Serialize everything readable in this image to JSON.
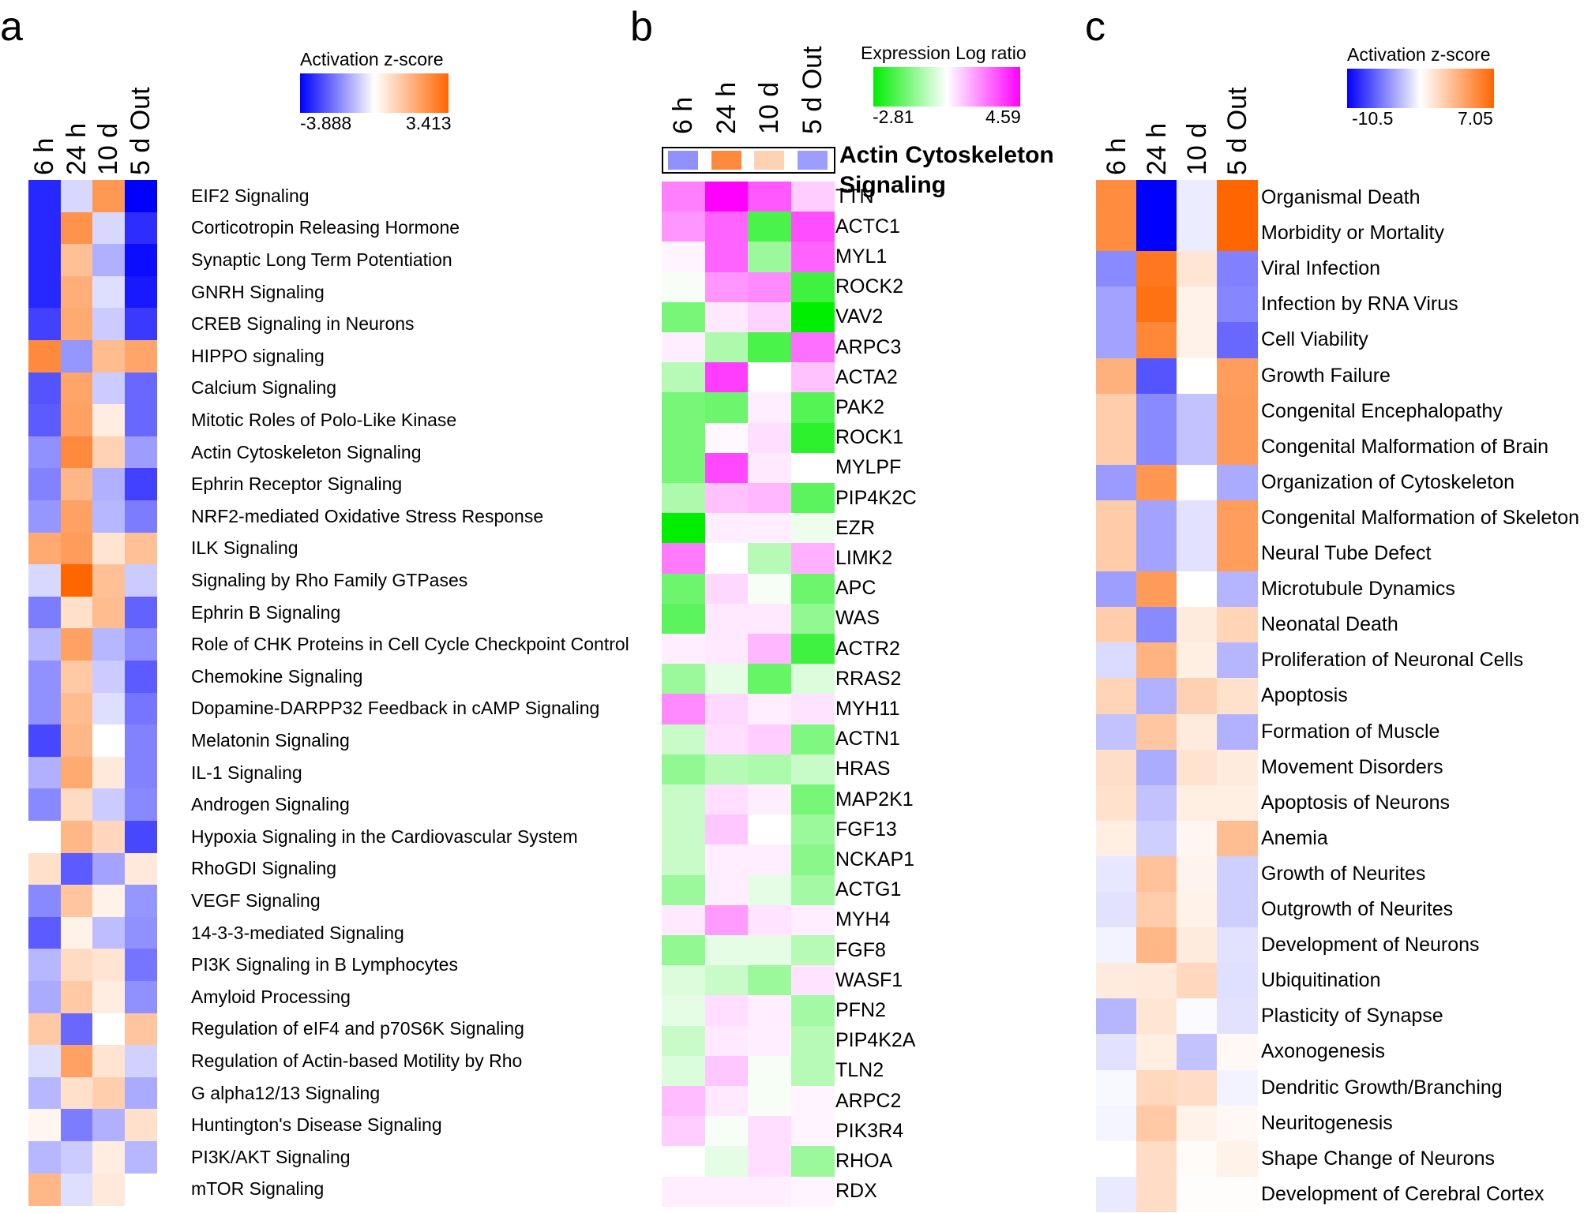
{
  "chart_data": [
    {
      "type": "heatmap",
      "panel": "a",
      "title": "",
      "legend": {
        "title": "Activation z-score",
        "min": -3.888,
        "max": 3.413,
        "min_label": "-3.888",
        "max_label": "3.413",
        "colors": {
          "low": "#0000ff",
          "mid": "#ffffff",
          "high": "#ff6600"
        }
      },
      "columns": [
        "6 h",
        "24 h",
        "10 d",
        "5 d Out"
      ],
      "rows": [
        {
          "label": "EIF2 Signaling",
          "values": [
            -3.3,
            -0.6,
            2.3,
            -3.888
          ]
        },
        {
          "label": "Corticotropin Releasing Hormone",
          "values": [
            -3.3,
            2.4,
            -0.6,
            -3.2
          ]
        },
        {
          "label": "Synaptic Long Term Potentiation",
          "values": [
            -3.3,
            1.4,
            -1.2,
            -3.7
          ]
        },
        {
          "label": "GNRH Signaling",
          "values": [
            -3.3,
            1.8,
            -0.5,
            -3.5
          ]
        },
        {
          "label": "CREB Signaling in Neurons",
          "values": [
            -2.9,
            1.9,
            -0.8,
            -3.0
          ]
        },
        {
          "label": "HIPPO signaling",
          "values": [
            2.6,
            -1.6,
            1.5,
            2.0
          ]
        },
        {
          "label": "Calcium Signaling",
          "values": [
            -2.6,
            2.0,
            -0.8,
            -2.3
          ]
        },
        {
          "label": "Mitotic Roles of Polo-Like Kinase",
          "values": [
            -2.5,
            2.1,
            0.4,
            -2.3
          ]
        },
        {
          "label": "Actin Cytoskeleton Signaling",
          "values": [
            -1.7,
            2.6,
            1.0,
            -1.5
          ]
        },
        {
          "label": "Ephrin Receptor Signaling",
          "values": [
            -1.9,
            1.6,
            -1.2,
            -2.9
          ]
        },
        {
          "label": "NRF2-mediated Oxidative Stress Response",
          "values": [
            -1.6,
            2.1,
            -1.1,
            -2.0
          ]
        },
        {
          "label": "ILK Signaling",
          "values": [
            1.9,
            2.2,
            0.6,
            1.4
          ]
        },
        {
          "label": "Signaling by Rho Family GTPases",
          "values": [
            -0.6,
            3.413,
            1.4,
            -0.8
          ]
        },
        {
          "label": "Ephrin B Signaling",
          "values": [
            -2.0,
            0.7,
            1.5,
            -2.4
          ]
        },
        {
          "label": "Role of CHK Proteins in Cell Cycle Checkpoint Control",
          "values": [
            -1.1,
            2.1,
            -1.1,
            -1.7
          ]
        },
        {
          "label": "Chemokine Signaling",
          "values": [
            -1.7,
            1.2,
            -0.8,
            -2.5
          ]
        },
        {
          "label": "Dopamine-DARPP32 Feedback in cAMP Signaling",
          "values": [
            -1.7,
            1.5,
            -0.5,
            -2.1
          ]
        },
        {
          "label": "Melatonin Signaling",
          "values": [
            -2.8,
            1.6,
            0.0,
            -1.9
          ]
        },
        {
          "label": "IL-1 Signaling",
          "values": [
            -1.2,
            1.9,
            0.5,
            -1.9
          ]
        },
        {
          "label": "Androgen Signaling",
          "values": [
            -1.8,
            0.8,
            -0.8,
            -1.8
          ]
        },
        {
          "label": "Hypoxia Signaling in the Cardiovascular System",
          "values": [
            0.0,
            1.6,
            0.9,
            -2.8
          ]
        },
        {
          "label": "RhoGDI Signaling",
          "values": [
            0.7,
            -2.5,
            -1.4,
            0.5
          ]
        },
        {
          "label": "VEGF Signaling",
          "values": [
            -1.8,
            1.3,
            0.3,
            -1.6
          ]
        },
        {
          "label": "14-3-3-mediated Signaling",
          "values": [
            -2.5,
            0.3,
            -1.0,
            -1.7
          ]
        },
        {
          "label": "PI3K Signaling in B Lymphocytes",
          "values": [
            -1.1,
            0.8,
            0.6,
            -2.1
          ]
        },
        {
          "label": "Amyloid Processing",
          "values": [
            -1.3,
            1.2,
            0.4,
            -1.7
          ]
        },
        {
          "label": "Regulation of eIF4 and p70S6K Signaling",
          "values": [
            1.2,
            -2.3,
            0.0,
            1.3
          ]
        },
        {
          "label": "Regulation of Actin-based Motility by Rho",
          "values": [
            -0.5,
            2.1,
            0.6,
            -0.7
          ]
        },
        {
          "label": "G alpha12/13 Signaling",
          "values": [
            -1.1,
            0.7,
            1.1,
            -1.3
          ]
        },
        {
          "label": "Huntington's Disease Signaling",
          "values": [
            0.2,
            -2.0,
            -1.2,
            0.7
          ]
        },
        {
          "label": "PI3K/AKT Signaling",
          "values": [
            -1.1,
            -0.8,
            0.4,
            -1.1
          ]
        },
        {
          "label": "mTOR Signaling",
          "values": [
            1.6,
            -0.5,
            0.5,
            0.0
          ]
        }
      ]
    },
    {
      "type": "heatmap",
      "panel": "b",
      "header": {
        "title_line1": "Actin Cytoskeleton",
        "title_line2": "Signaling",
        "z_scores": [
          -1.7,
          2.6,
          1.0,
          -1.5
        ]
      },
      "legend": {
        "title": "Expression Log ratio",
        "min": -2.81,
        "max": 4.59,
        "min_label": "-2.81",
        "max_label": "4.59",
        "colors": {
          "low": "#00ee00",
          "mid": "#ffffff",
          "high": "#ff00ff"
        }
      },
      "columns": [
        "6 h",
        "24 h",
        "10 d",
        "5 d Out"
      ],
      "rows": [
        {
          "label": "TTN",
          "values": [
            2.3,
            4.59,
            3.0,
            0.9
          ]
        },
        {
          "label": "ACTC1",
          "values": [
            1.9,
            2.8,
            -2.0,
            3.2
          ]
        },
        {
          "label": "MYL1",
          "values": [
            0.2,
            2.8,
            -1.1,
            2.8
          ]
        },
        {
          "label": "ROCK2",
          "values": [
            -0.1,
            1.9,
            2.1,
            -2.1
          ]
        },
        {
          "label": "VAV2",
          "values": [
            -1.5,
            0.4,
            0.8,
            -2.81
          ]
        },
        {
          "label": "ARPC3",
          "values": [
            0.3,
            -0.9,
            -2.0,
            2.6
          ]
        },
        {
          "label": "ACTA2",
          "values": [
            -0.8,
            3.5,
            0.0,
            1.1
          ]
        },
        {
          "label": "PAK2",
          "values": [
            -1.5,
            -1.6,
            0.3,
            -1.9
          ]
        },
        {
          "label": "ROCK1",
          "values": [
            -1.5,
            0.1,
            0.6,
            -2.3
          ]
        },
        {
          "label": "MYLPF",
          "values": [
            -1.5,
            3.3,
            0.4,
            0.0
          ]
        },
        {
          "label": "PIP4K2C",
          "values": [
            -0.9,
            1.1,
            1.3,
            -1.8
          ]
        },
        {
          "label": "EZR",
          "values": [
            -2.81,
            0.3,
            0.3,
            -0.2
          ]
        },
        {
          "label": "LIMK2",
          "values": [
            2.4,
            0.0,
            -0.8,
            1.4
          ]
        },
        {
          "label": "APC",
          "values": [
            -1.6,
            0.7,
            -0.1,
            -1.6
          ]
        },
        {
          "label": "WAS",
          "values": [
            -1.8,
            0.4,
            0.4,
            -1.2
          ]
        },
        {
          "label": "ACTR2",
          "values": [
            0.3,
            0.4,
            1.3,
            -2.1
          ]
        },
        {
          "label": "RRAS2",
          "values": [
            -1.1,
            -0.3,
            -1.7,
            -0.4
          ]
        },
        {
          "label": "MYH11",
          "values": [
            2.1,
            0.7,
            0.3,
            0.5
          ]
        },
        {
          "label": "ACTN1",
          "values": [
            -0.6,
            0.6,
            0.9,
            -1.4
          ]
        },
        {
          "label": "HRAS",
          "values": [
            -1.2,
            -0.8,
            -0.9,
            -0.6
          ]
        },
        {
          "label": "MAP2K1",
          "values": [
            -0.6,
            0.6,
            0.3,
            -1.5
          ]
        },
        {
          "label": "FGF13",
          "values": [
            -0.6,
            1.0,
            0.0,
            -1.1
          ]
        },
        {
          "label": "NCKAP1",
          "values": [
            -0.6,
            0.3,
            0.3,
            -1.3
          ]
        },
        {
          "label": "ACTG1",
          "values": [
            -1.1,
            0.3,
            -0.3,
            -1.0
          ]
        },
        {
          "label": "MYH4",
          "values": [
            0.4,
            1.8,
            0.5,
            0.3
          ]
        },
        {
          "label": "FGF8",
          "values": [
            -1.2,
            -0.3,
            -0.3,
            -0.8
          ]
        },
        {
          "label": "WASF1",
          "values": [
            -0.4,
            -0.6,
            -1.1,
            0.5
          ]
        },
        {
          "label": "PFN2",
          "values": [
            -0.3,
            0.6,
            0.3,
            -1.0
          ]
        },
        {
          "label": "PIP4K2A",
          "values": [
            -0.6,
            0.4,
            0.3,
            -0.8
          ]
        },
        {
          "label": "TLN2",
          "values": [
            -0.4,
            1.0,
            -0.1,
            -0.8
          ]
        },
        {
          "label": "ARPC2",
          "values": [
            1.2,
            0.4,
            -0.1,
            0.2
          ]
        },
        {
          "label": "PIK3R4",
          "values": [
            0.9,
            -0.1,
            0.6,
            0.2
          ]
        },
        {
          "label": "RHOA",
          "values": [
            0.0,
            -0.3,
            0.6,
            -1.1
          ]
        },
        {
          "label": "RDX",
          "values": [
            0.3,
            0.3,
            0.3,
            0.2
          ]
        }
      ]
    },
    {
      "type": "heatmap",
      "panel": "c",
      "legend": {
        "title": "Activation z-score",
        "min": -10.5,
        "max": 7.05,
        "min_label": "-10.5",
        "max_label": "7.05",
        "colors": {
          "low": "#0000ff",
          "mid": "#ffffff",
          "high": "#ff6600"
        }
      },
      "columns": [
        "6 h",
        "24 h",
        "10 d",
        "5 d Out"
      ],
      "rows": [
        {
          "label": "Organismal Death",
          "values": [
            5.3,
            -10.5,
            -0.8,
            7.05
          ]
        },
        {
          "label": "Morbidity or Mortality",
          "values": [
            5.3,
            -10.5,
            -0.8,
            7.05
          ]
        },
        {
          "label": "Viral Infection",
          "values": [
            -4.8,
            6.2,
            1.2,
            -5.2
          ]
        },
        {
          "label": "Infection by RNA Virus",
          "values": [
            -3.8,
            6.5,
            0.6,
            -5.0
          ]
        },
        {
          "label": "Cell Viability",
          "values": [
            -3.8,
            5.5,
            0.6,
            -6.2
          ]
        },
        {
          "label": "Growth Failure",
          "values": [
            3.6,
            -7.0,
            0.0,
            4.5
          ]
        },
        {
          "label": "Congenital Encephalopathy",
          "values": [
            2.3,
            -4.8,
            -2.5,
            4.6
          ]
        },
        {
          "label": "Congenital Malformation of Brain",
          "values": [
            2.3,
            -4.8,
            -2.5,
            4.6
          ]
        },
        {
          "label": "Organization of Cytoskeleton",
          "values": [
            -4.1,
            4.8,
            0.0,
            -3.5
          ]
        },
        {
          "label": "Congenital Malformation of Skeleton",
          "values": [
            2.4,
            -3.8,
            -1.2,
            4.5
          ]
        },
        {
          "label": "Neural Tube Defect",
          "values": [
            2.4,
            -3.8,
            -1.2,
            4.5
          ]
        },
        {
          "label": "Microtubule Dynamics",
          "values": [
            -4.0,
            4.6,
            0.0,
            -3.1
          ]
        },
        {
          "label": "Neonatal Death",
          "values": [
            2.3,
            -4.8,
            0.9,
            2.0
          ]
        },
        {
          "label": "Proliferation of Neuronal Cells",
          "values": [
            -1.5,
            3.5,
            0.8,
            -3.0
          ]
        },
        {
          "label": "Apoptosis",
          "values": [
            2.0,
            -3.2,
            2.1,
            1.4
          ]
        },
        {
          "label": "Formation of Muscle",
          "values": [
            -2.5,
            2.6,
            0.9,
            -3.2
          ]
        },
        {
          "label": "Movement Disorders",
          "values": [
            1.5,
            -3.4,
            1.3,
            0.9
          ]
        },
        {
          "label": "Apoptosis of Neurons",
          "values": [
            1.4,
            -2.5,
            0.8,
            0.8
          ]
        },
        {
          "label": "Anemia",
          "values": [
            0.8,
            -2.0,
            0.4,
            3.0
          ]
        },
        {
          "label": "Growth of Neurites",
          "values": [
            -1.0,
            2.8,
            0.5,
            -2.0
          ]
        },
        {
          "label": "Outgrowth of Neurites",
          "values": [
            -1.2,
            2.3,
            0.6,
            -2.0
          ]
        },
        {
          "label": "Development of Neurons",
          "values": [
            -0.5,
            3.3,
            0.9,
            -1.2
          ]
        },
        {
          "label": "Ubiquitination",
          "values": [
            0.9,
            1.0,
            1.8,
            -1.3
          ]
        },
        {
          "label": "Plasticity of Synapse",
          "values": [
            -3.0,
            1.2,
            -0.2,
            -1.2
          ]
        },
        {
          "label": "Axonogenesis",
          "values": [
            -1.2,
            0.8,
            -2.5,
            0.3
          ]
        },
        {
          "label": "Dendritic Growth/Branching",
          "values": [
            -0.3,
            1.8,
            1.6,
            -0.5
          ]
        },
        {
          "label": "Neuritogenesis",
          "values": [
            -0.4,
            2.5,
            0.6,
            0.3
          ]
        },
        {
          "label": "Shape Change of Neurons",
          "values": [
            0.0,
            1.6,
            0.2,
            0.6
          ]
        },
        {
          "label": "Development of Cerebral Cortex",
          "values": [
            -0.9,
            1.6,
            0.1,
            0.1
          ]
        }
      ]
    }
  ],
  "panels": {
    "a": {
      "letter": "a"
    },
    "b": {
      "letter": "b"
    },
    "c": {
      "letter": "c"
    }
  }
}
